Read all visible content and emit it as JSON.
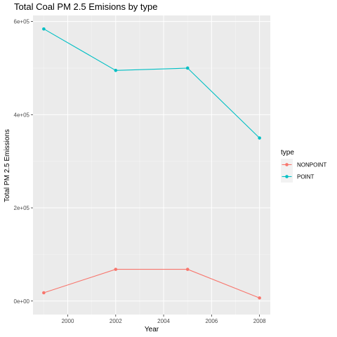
{
  "chart_data": {
    "type": "line",
    "title": "Total Coal PM 2.5 Emisions by type",
    "xlabel": "Year",
    "ylabel": "Total PM 2.5 Emissions",
    "x": [
      1999,
      2002,
      2005,
      2008
    ],
    "xlim": [
      1998.55,
      2008.45
    ],
    "ylim": [
      -29000,
      613000
    ],
    "x_ticks": [
      2000,
      2002,
      2004,
      2006,
      2008
    ],
    "x_tick_labels": [
      "2000",
      "2002",
      "2004",
      "2006",
      "2008"
    ],
    "y_ticks": [
      0,
      200000,
      400000,
      600000
    ],
    "y_tick_labels": [
      "0e+00",
      "2e+05",
      "4e+05",
      "6e+05"
    ],
    "grid": true,
    "legend": {
      "title": "type",
      "placement": "right"
    },
    "series": [
      {
        "name": "NONPOINT",
        "color": "#F8766D",
        "values": [
          17700,
          68000,
          68000,
          6600
        ]
      },
      {
        "name": "POINT",
        "color": "#00BFC4",
        "values": [
          584000,
          495000,
          500000,
          350000
        ]
      }
    ]
  },
  "colors": {
    "panel_background": "#EBEBEB",
    "grid_major": "#FFFFFF",
    "tick_text": "#4D4D4D"
  }
}
